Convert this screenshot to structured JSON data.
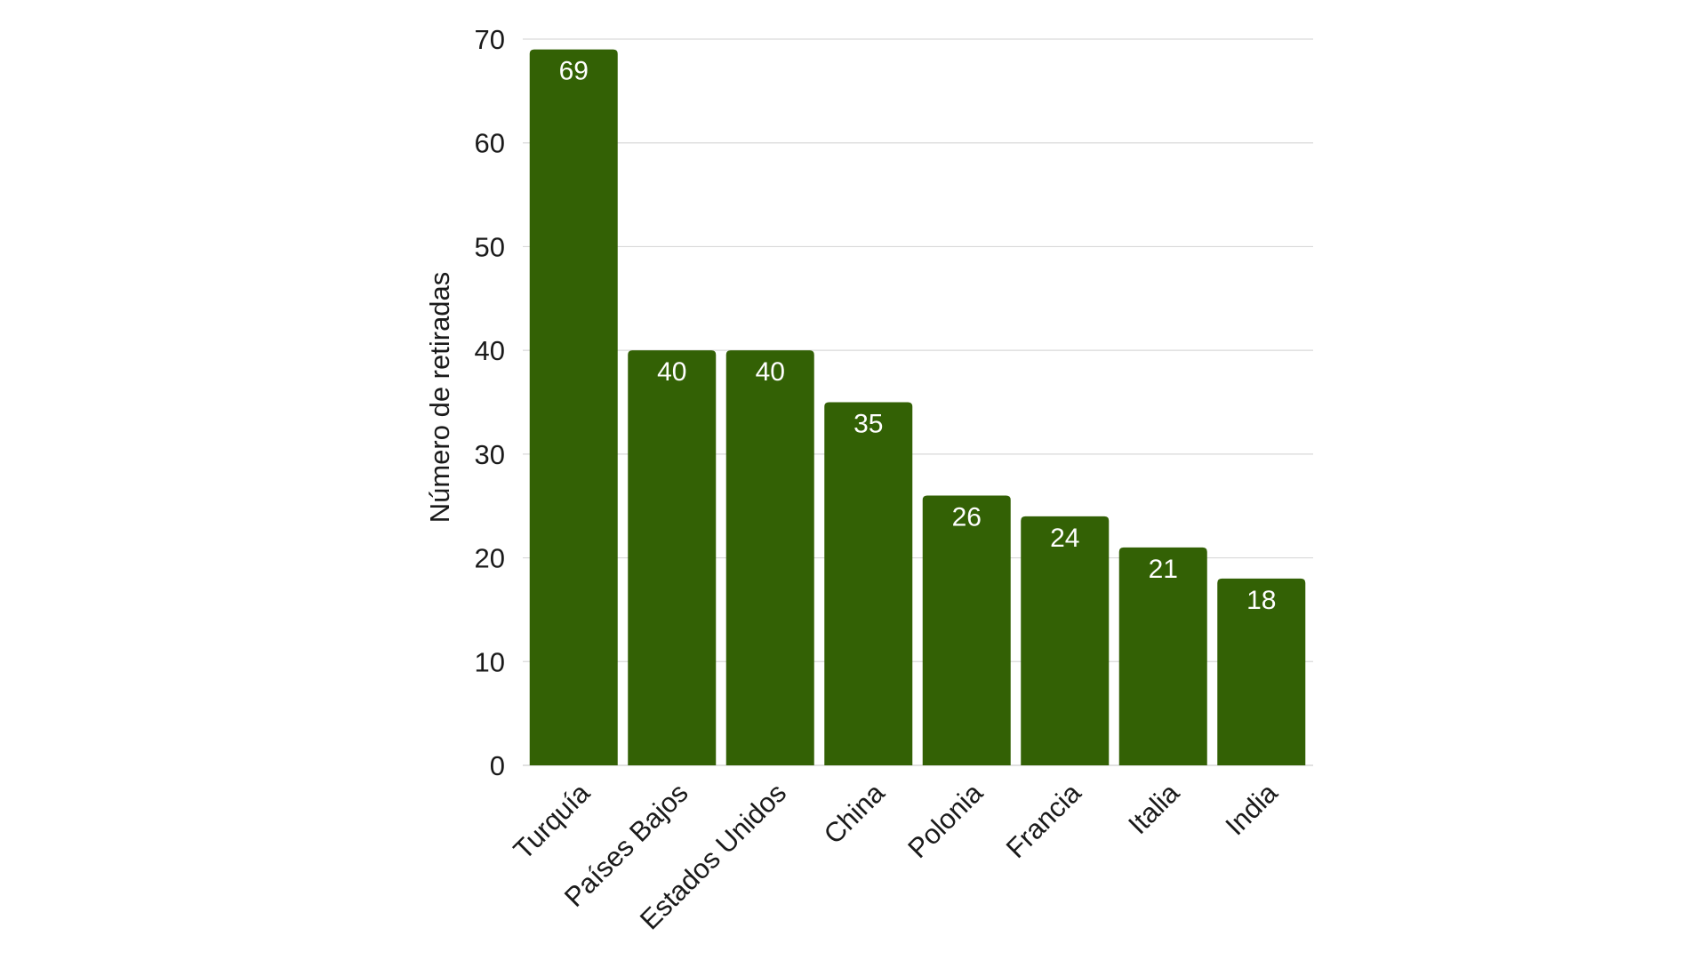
{
  "chart_data": {
    "type": "bar",
    "title": "",
    "xlabel": "",
    "ylabel": "Número de retiradas",
    "categories": [
      "Turquía",
      "Países Bajos",
      "Estados Unidos",
      "China",
      "Polonia",
      "Francia",
      "Italia",
      "India"
    ],
    "values": [
      69,
      40,
      40,
      35,
      26,
      24,
      21,
      18
    ],
    "ylim": [
      0,
      70
    ],
    "yticks": [
      "0",
      "10",
      "20",
      "30",
      "40",
      "50",
      "60",
      "70"
    ],
    "grid": true,
    "legend": "none",
    "data_labels": true,
    "x_tick_rotation": "-45deg",
    "bar_color": "#336105",
    "label_color": "#ffffff"
  }
}
